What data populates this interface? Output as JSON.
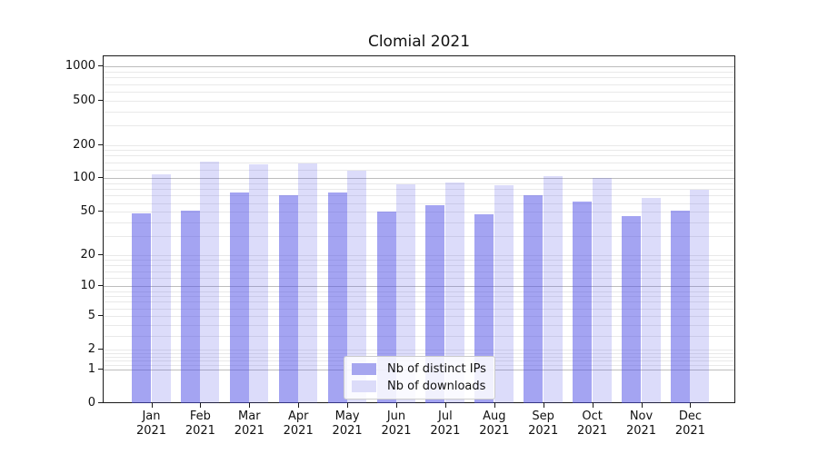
{
  "chart_data": {
    "type": "bar",
    "title": "Clomial 2021",
    "categories": [
      "Jan 2021",
      "Feb 2021",
      "Mar 2021",
      "Apr 2021",
      "May 2021",
      "Jun 2021",
      "Jul 2021",
      "Aug 2021",
      "Sep 2021",
      "Oct 2021",
      "Nov 2021",
      "Dec 2021"
    ],
    "series": [
      {
        "name": "Nb of distinct IPs",
        "color": "rgba(80,80,230,0.52)",
        "legend_color": "#a6a6ef",
        "values": [
          49,
          52,
          76,
          72,
          76,
          51,
          58,
          48,
          72,
          63,
          46,
          52
        ]
      },
      {
        "name": "Nb of downloads",
        "color": "rgba(80,80,230,0.20)",
        "legend_color": "#dcdcf9",
        "values": [
          110,
          145,
          136,
          140,
          120,
          90,
          93,
          89,
          106,
          102,
          68,
          80
        ]
      }
    ],
    "y_axis": {
      "scale": "log1p",
      "tick_labels": [
        1000,
        500,
        200,
        100,
        50,
        20,
        10,
        5,
        2,
        1,
        0
      ],
      "major_gridlines": [
        1,
        10,
        100,
        1000
      ],
      "minor_gridlines": [
        1.2,
        1.4,
        1.6,
        1.8,
        2,
        3,
        4,
        5,
        6,
        7,
        8,
        9,
        12,
        14,
        16,
        18,
        20,
        30,
        40,
        50,
        60,
        70,
        80,
        90,
        120,
        140,
        160,
        180,
        200,
        300,
        400,
        500,
        600,
        700,
        800,
        900
      ],
      "range_max": 1275
    },
    "x_axis": {
      "label_year_rows": true
    },
    "legend": {
      "position": "lower center"
    },
    "colors": {
      "major_grid": "#bdbdbd",
      "minor_grid": "#e9e9e9",
      "spine": "#1a1a1a"
    },
    "grid": true
  }
}
